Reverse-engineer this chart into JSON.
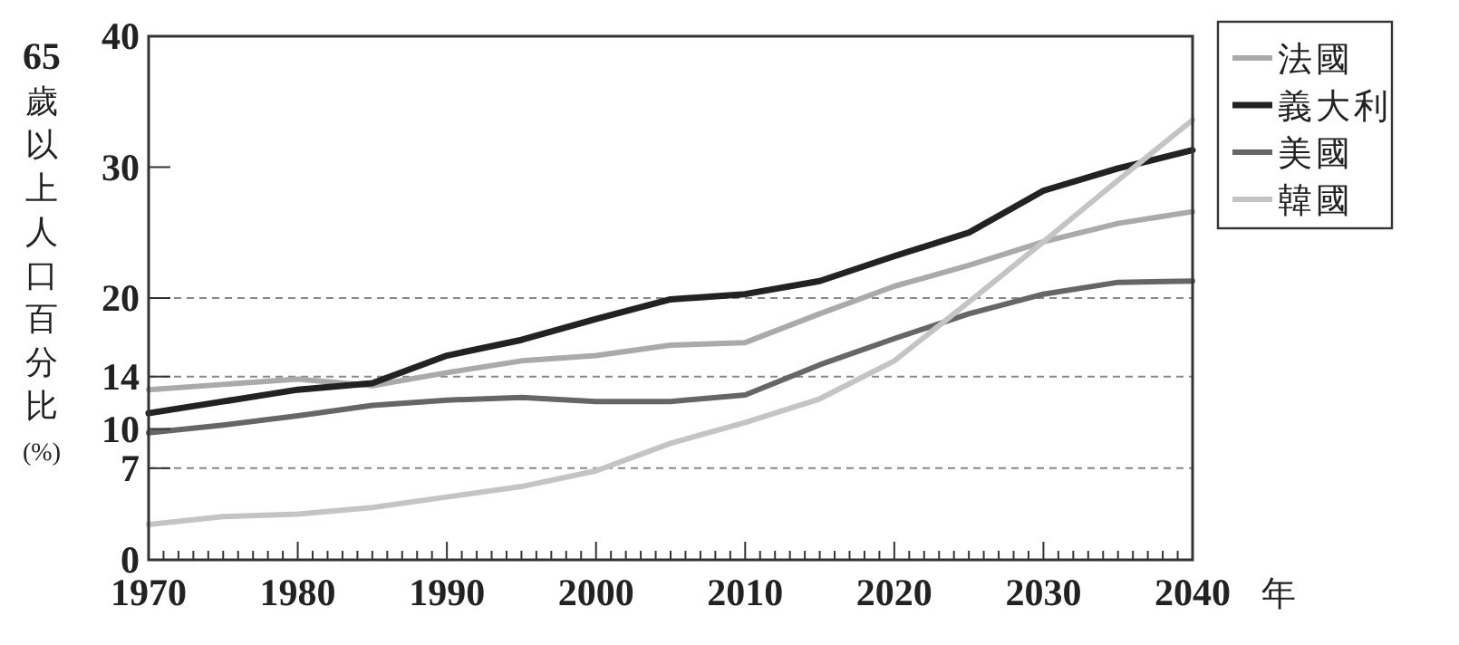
{
  "chart_data": {
    "type": "line",
    "ylabel": "65歲以上人口百分比(%)",
    "xlabel": "年",
    "x": [
      1970,
      1975,
      1980,
      1985,
      1990,
      1995,
      2000,
      2005,
      2010,
      2015,
      2020,
      2025,
      2030,
      2035,
      2040
    ],
    "xlim": [
      1970,
      2040
    ],
    "xticks": [
      1970,
      1980,
      1990,
      2000,
      2010,
      2020,
      2030,
      2040
    ],
    "ylim": [
      0,
      40
    ],
    "yticks": [
      0,
      7,
      10,
      14,
      20,
      30,
      40
    ],
    "ref_lines": [
      {
        "axis": "y",
        "value": 7,
        "line_style": "dashed",
        "color": "#888888"
      },
      {
        "axis": "y",
        "value": 14,
        "line_style": "dashed",
        "color": "#888888"
      },
      {
        "axis": "y",
        "value": 20,
        "line_style": "dashed",
        "color": "#888888"
      }
    ],
    "legend": "top right",
    "line_style": "solid",
    "series": [
      {
        "name": "法國",
        "color": "#aaaaaa",
        "values": [
          13.0,
          13.4,
          13.8,
          13.3,
          14.3,
          15.2,
          15.6,
          16.4,
          16.6,
          18.8,
          20.9,
          22.5,
          24.3,
          25.7,
          26.6
        ]
      },
      {
        "name": "義大利",
        "color": "#222222",
        "values": [
          11.2,
          12.1,
          13.0,
          13.5,
          15.6,
          16.8,
          18.4,
          19.9,
          20.3,
          21.3,
          23.2,
          25.0,
          28.2,
          29.9,
          31.3
        ]
      },
      {
        "name": "美國",
        "color": "#666666",
        "values": [
          9.7,
          10.3,
          11.0,
          11.8,
          12.2,
          12.4,
          12.1,
          12.1,
          12.6,
          14.9,
          16.9,
          18.8,
          20.3,
          21.2,
          21.3
        ]
      },
      {
        "name": "韓國",
        "color": "#c4c4c4",
        "values": [
          2.7,
          3.3,
          3.5,
          4.0,
          4.8,
          5.6,
          6.8,
          8.9,
          10.5,
          12.3,
          15.2,
          19.7,
          24.3,
          29.0,
          33.6
        ]
      }
    ]
  }
}
